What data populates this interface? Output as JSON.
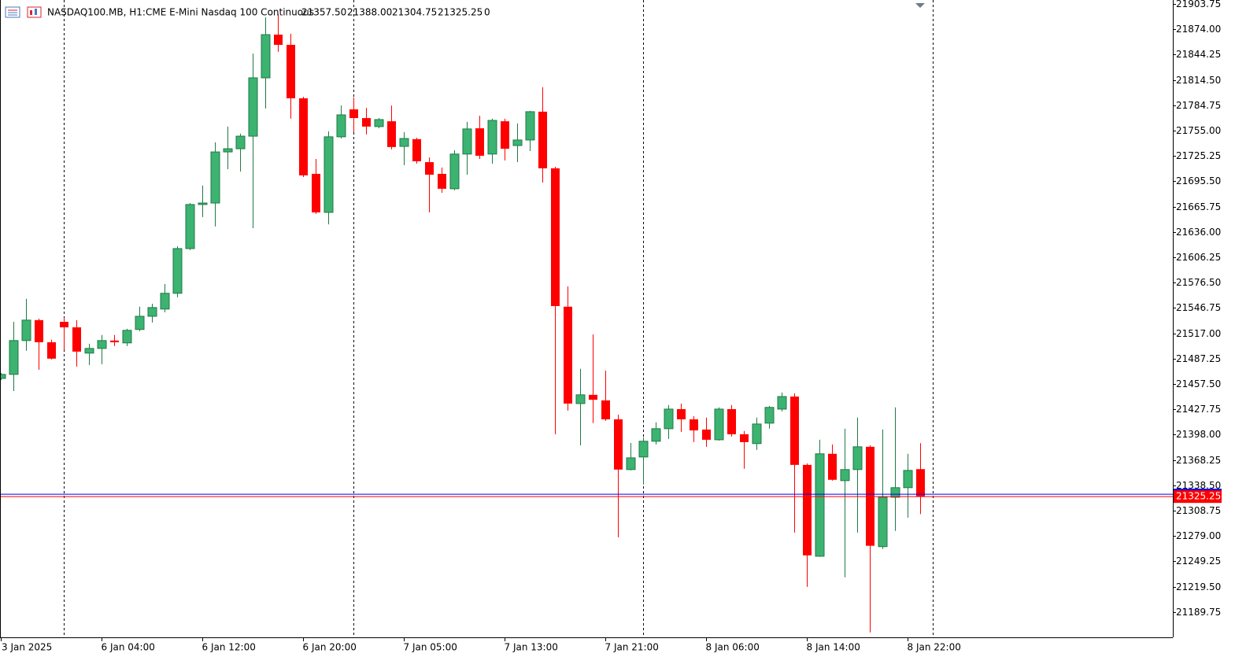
{
  "chart_data": {
    "type": "candlestick",
    "symbol": "NASDAQ100.MB, H1:",
    "description": "CME E-Mini Nasdaq 100 Continuous",
    "info_values": [
      {
        "value": 21357.5,
        "label": "21357.50"
      },
      {
        "value": 21388,
        "label": "21388.00"
      },
      {
        "value": 21304.75,
        "label": "21304.75"
      },
      {
        "value": 21325.25,
        "label": "21325.25"
      }
    ],
    "info_extra": 0,
    "categories": [
      "3 Jan 2025",
      null,
      null,
      null,
      null,
      null,
      null,
      null,
      "6 Jan 04:00",
      null,
      null,
      null,
      null,
      null,
      null,
      null,
      "6 Jan 12:00",
      null,
      null,
      null,
      null,
      null,
      null,
      null,
      "6 Jan 20:00",
      null,
      null,
      null,
      null,
      null,
      null,
      null,
      "7 Jan 05:00",
      null,
      null,
      null,
      null,
      null,
      null,
      null,
      "7 Jan 13:00",
      null,
      null,
      null,
      null,
      null,
      null,
      null,
      "7 Jan 21:00",
      null,
      null,
      null,
      null,
      null,
      null,
      null,
      "8 Jan 06:00",
      null,
      null,
      null,
      null,
      null,
      null,
      null,
      "8 Jan 14:00",
      null,
      null,
      null,
      null,
      null,
      null,
      null,
      "8 Jan 22:00",
      null
    ],
    "open": [
      21464,
      21468.75,
      21508.5,
      21532.5,
      21506.5,
      21530.5,
      21524,
      21493.75,
      21499.25,
      21508.5,
      21505.75,
      21521.5,
      21537,
      21545.5,
      21564,
      21616.5,
      21668.25,
      21670,
      21730,
      21733.75,
      21748.5,
      21817,
      21867.75,
      21855.75,
      21793,
      21704.25,
      21659,
      21747.75,
      21780,
      21769.75,
      21759.75,
      21766,
      21736.5,
      21745,
      21718,
      21704.25,
      21686.75,
      21727.5,
      21757.75,
      21727.5,
      21766,
      21737.5,
      21744,
      21777.25,
      21710.75,
      21548.25,
      21434.5,
      21444.75,
      21438.25,
      21416,
      21357,
      21371.75,
      21390.25,
      21405,
      21428,
      21416,
      21404,
      21392,
      21428,
      21398.5,
      21387.5,
      21411.5,
      21428,
      21442.75,
      21362.5,
      21255.25,
      21375.5,
      21344,
      21357,
      21383.75,
      21266.5,
      21324.5,
      21335.75,
      21357.5
    ],
    "high": [
      21470.5,
      21530.5,
      21557.5,
      21534.25,
      21509.5,
      21535.25,
      21532.5,
      21504.75,
      21515,
      21515,
      21522.25,
      21548.25,
      21551.75,
      21575,
      21619.25,
      21670,
      21690.5,
      21741.25,
      21759.75,
      21751.5,
      21845.5,
      21888,
      21891.75,
      21868.75,
      21794.75,
      21721.75,
      21754.25,
      21784.5,
      21794,
      21781.75,
      21769.75,
      21784.5,
      21753.25,
      21746.75,
      21723.5,
      21711.75,
      21732,
      21765.25,
      21772.5,
      21769,
      21769,
      21763.5,
      21778.25,
      21806,
      21712.5,
      21572.25,
      21475.25,
      21515.75,
      21473.25,
      21421.5,
      21388.25,
      21394.75,
      21412.5,
      21432.75,
      21434.5,
      21419.75,
      21418,
      21430,
      21432.75,
      21402.25,
      21418,
      21431.75,
      21447.5,
      21446.5,
      21364.25,
      21392,
      21386.5,
      21405,
      21418,
      21385.5,
      21404,
      21430,
      21375.5,
      21388
    ],
    "low": [
      21462.25,
      21449.25,
      21496.5,
      21474.25,
      21486.25,
      21497.5,
      21478,
      21479.75,
      21480.75,
      21502,
      21502,
      21519.5,
      21529.75,
      21541.75,
      21559.25,
      21614.75,
      21653.5,
      21642.5,
      21709.75,
      21707,
      21640.5,
      21781,
      21847.5,
      21769,
      21700.5,
      21657.25,
      21645,
      21745.75,
      21753.25,
      21750.5,
      21757.75,
      21733,
      21714.5,
      21716.25,
      21659,
      21682,
      21685,
      21703.25,
      21721.75,
      21716.25,
      21720,
      21718,
      21731,
      21694,
      21398.5,
      21426.25,
      21385.5,
      21411.5,
      21414.25,
      21277.5,
      21356,
      21339.5,
      21386.5,
      21393,
      21401.25,
      21389.25,
      21383.75,
      21391,
      21395.75,
      21358,
      21380,
      21405,
      21425.25,
      21283,
      21219.25,
      21254.5,
      21344,
      21230.5,
      21283,
      21165.75,
      21263.75,
      21285,
      21300.5,
      21304.75
    ],
    "close": [
      21468.75,
      21508.5,
      21532.5,
      21506.5,
      21487.25,
      21524,
      21495.5,
      21499.25,
      21508.5,
      21506.5,
      21520.5,
      21537,
      21547.25,
      21564,
      21616.5,
      21668.25,
      21670,
      21730,
      21733.75,
      21748.5,
      21817,
      21867.75,
      21855.75,
      21793,
      21702.5,
      21659,
      21747.75,
      21773.5,
      21769.75,
      21759.75,
      21768,
      21735.75,
      21745.75,
      21719,
      21703.25,
      21686.75,
      21727.5,
      21757,
      21725.5,
      21767,
      21733.75,
      21744,
      21777.25,
      21710.75,
      21549,
      21434.5,
      21444.75,
      21439,
      21416,
      21357,
      21370.75,
      21390.25,
      21405,
      21428,
      21416,
      21403,
      21392,
      21428,
      21398.5,
      21389.25,
      21410.5,
      21430,
      21442.75,
      21362.5,
      21256.25,
      21375.5,
      21345,
      21357,
      21383.75,
      21267.5,
      21324.5,
      21335.75,
      21356,
      21325.25
    ],
    "up_color": "#3cb371",
    "up_border": "#1f7a45",
    "down_color": "#ff0000",
    "bid": 21325.25,
    "bid_color": "#ff0000",
    "ask": 21328,
    "ask_color": "#0000ff",
    "ylim": [
      21160,
      21908.4
    ],
    "yticks": [
      {
        "value": 21903.75,
        "label": "21903.75"
      },
      {
        "value": 21874,
        "label": "21874.00"
      },
      {
        "value": 21844.25,
        "label": "21844.25"
      },
      {
        "value": 21814.5,
        "label": "21814.50"
      },
      {
        "value": 21784.75,
        "label": "21784.75"
      },
      {
        "value": 21755,
        "label": "21755.00"
      },
      {
        "value": 21725.25,
        "label": "21725.25"
      },
      {
        "value": 21695.5,
        "label": "21695.50"
      },
      {
        "value": 21665.75,
        "label": "21665.75"
      },
      {
        "value": 21636,
        "label": "21636.00"
      },
      {
        "value": 21606.25,
        "label": "21606.25"
      },
      {
        "value": 21576.5,
        "label": "21576.50"
      },
      {
        "value": 21546.75,
        "label": "21546.75"
      },
      {
        "value": 21517,
        "label": "21517.00"
      },
      {
        "value": 21487.25,
        "label": "21487.25"
      },
      {
        "value": 21457.5,
        "label": "21457.50"
      },
      {
        "value": 21427.75,
        "label": "21427.75"
      },
      {
        "value": 21398,
        "label": "21398.00"
      },
      {
        "value": 21368.25,
        "label": "21368.25"
      },
      {
        "value": 21338.5,
        "label": "21338.50"
      },
      {
        "value": 21308.75,
        "label": "21308.75"
      },
      {
        "value": 21279,
        "label": "21279.00"
      },
      {
        "value": 21249.25,
        "label": "21249.25"
      },
      {
        "value": 21219.5,
        "label": "21219.50"
      },
      {
        "value": 21189.75,
        "label": "21189.75"
      }
    ],
    "grid": false
  }
}
